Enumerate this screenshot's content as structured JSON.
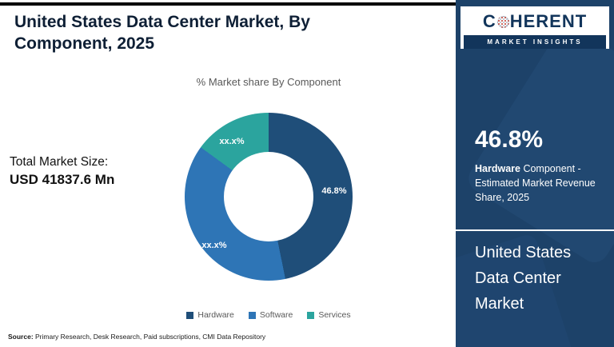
{
  "header": {
    "title": "United States Data Center Market, By Component, 2025"
  },
  "chart_data": {
    "type": "pie",
    "donut": true,
    "title": "% Market share By Component",
    "categories": [
      "Hardware",
      "Software",
      "Services"
    ],
    "values": [
      46.8,
      38.2,
      15.0
    ],
    "slice_labels": [
      "46.8%",
      "xx.x%",
      "xx.x%"
    ],
    "colors": [
      "#1F4E79",
      "#2E75B6",
      "#2BA49E"
    ],
    "legend_position": "bottom"
  },
  "total_market_size": {
    "label": "Total Market Size:",
    "value": "USD 41837.6 Mn"
  },
  "source_line": {
    "prefix": "Source:",
    "text": " Primary Research, Desk Research, Paid subscriptions, CMI Data Repository"
  },
  "sidebar": {
    "logo": {
      "brand_c": "C",
      "brand_rest": "HERENT",
      "tagline": "MARKET INSIGHTS"
    },
    "stat": {
      "value": "46.8%",
      "desc_bold": "Hardware",
      "desc_rest": " Component - Estimated Market Revenue Share, 2025"
    },
    "market_title": "United States Data Center Market"
  }
}
